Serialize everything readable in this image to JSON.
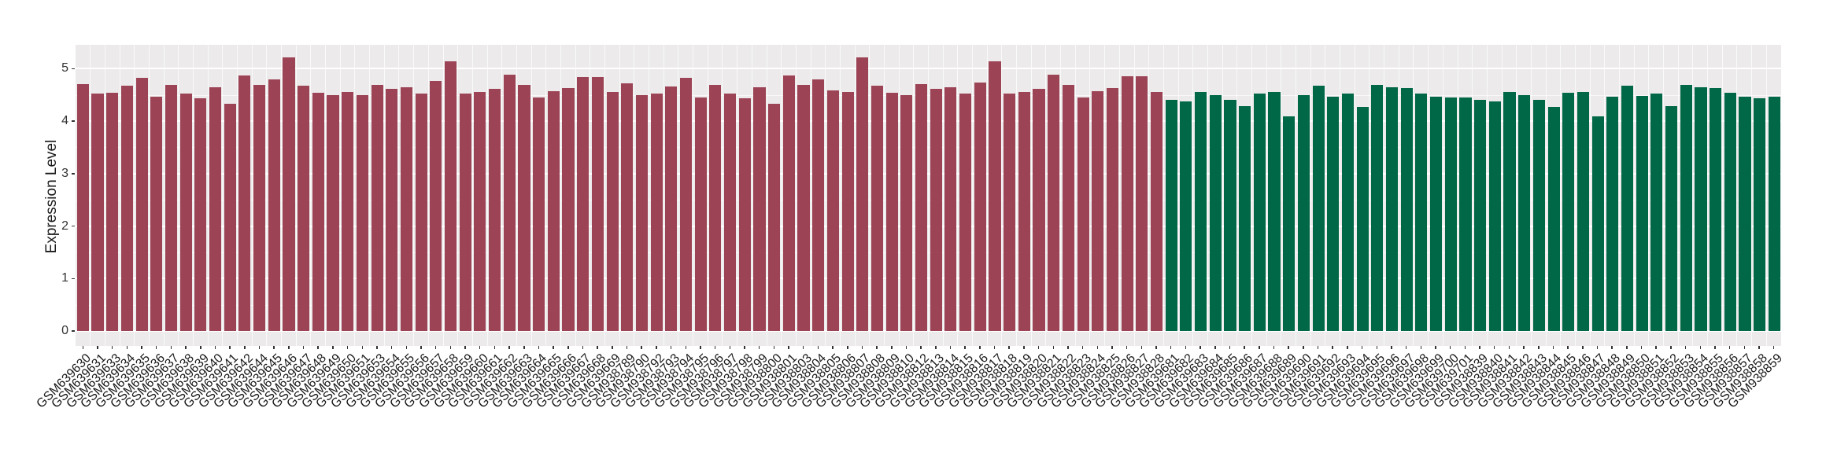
{
  "chart_data": {
    "type": "bar",
    "title": "",
    "xlabel": "",
    "ylabel": "Expression Level",
    "ylim": [
      0,
      5.46
    ],
    "yticks": [
      0,
      1,
      2,
      3,
      4,
      5
    ],
    "grid": "white major and minor horizontal lines plus vertical separators on gray panel",
    "legend_position": "none",
    "panel_background": "#ECEAEA",
    "group_colors": {
      "red": "#9C4355",
      "green": "#006747"
    },
    "bars": [
      {
        "label": "GSM639630",
        "value": 4.71,
        "group": "red"
      },
      {
        "label": "GSM639631",
        "value": 4.52,
        "group": "red"
      },
      {
        "label": "GSM639633",
        "value": 4.54,
        "group": "red"
      },
      {
        "label": "GSM639634",
        "value": 4.67,
        "group": "red"
      },
      {
        "label": "GSM639635",
        "value": 4.82,
        "group": "red"
      },
      {
        "label": "GSM639636",
        "value": 4.46,
        "group": "red"
      },
      {
        "label": "GSM639637",
        "value": 4.69,
        "group": "red"
      },
      {
        "label": "GSM639638",
        "value": 4.52,
        "group": "red"
      },
      {
        "label": "GSM639639",
        "value": 4.44,
        "group": "red"
      },
      {
        "label": "GSM639640",
        "value": 4.65,
        "group": "red"
      },
      {
        "label": "GSM639641",
        "value": 4.33,
        "group": "red"
      },
      {
        "label": "GSM639642",
        "value": 4.87,
        "group": "red"
      },
      {
        "label": "GSM639644",
        "value": 4.69,
        "group": "red"
      },
      {
        "label": "GSM639645",
        "value": 4.79,
        "group": "red"
      },
      {
        "label": "GSM639646",
        "value": 5.22,
        "group": "red"
      },
      {
        "label": "GSM639647",
        "value": 4.68,
        "group": "red"
      },
      {
        "label": "GSM639648",
        "value": 4.54,
        "group": "red"
      },
      {
        "label": "GSM639649",
        "value": 4.49,
        "group": "red"
      },
      {
        "label": "GSM639650",
        "value": 4.56,
        "group": "red"
      },
      {
        "label": "GSM639651",
        "value": 4.5,
        "group": "red"
      },
      {
        "label": "GSM639653",
        "value": 4.69,
        "group": "red"
      },
      {
        "label": "GSM639654",
        "value": 4.61,
        "group": "red"
      },
      {
        "label": "GSM639655",
        "value": 4.64,
        "group": "red"
      },
      {
        "label": "GSM639656",
        "value": 4.53,
        "group": "red"
      },
      {
        "label": "GSM639657",
        "value": 4.76,
        "group": "red"
      },
      {
        "label": "GSM639658",
        "value": 5.14,
        "group": "red"
      },
      {
        "label": "GSM639659",
        "value": 4.52,
        "group": "red"
      },
      {
        "label": "GSM639660",
        "value": 4.56,
        "group": "red"
      },
      {
        "label": "GSM639661",
        "value": 4.61,
        "group": "red"
      },
      {
        "label": "GSM639662",
        "value": 4.89,
        "group": "red"
      },
      {
        "label": "GSM639663",
        "value": 4.69,
        "group": "red"
      },
      {
        "label": "GSM639664",
        "value": 4.45,
        "group": "red"
      },
      {
        "label": "GSM639665",
        "value": 4.57,
        "group": "red"
      },
      {
        "label": "GSM639666",
        "value": 4.63,
        "group": "red"
      },
      {
        "label": "GSM639667",
        "value": 4.84,
        "group": "red"
      },
      {
        "label": "GSM639668",
        "value": 4.84,
        "group": "red"
      },
      {
        "label": "GSM639669",
        "value": 4.55,
        "group": "red"
      },
      {
        "label": "GSM938789",
        "value": 4.72,
        "group": "red"
      },
      {
        "label": "GSM938790",
        "value": 4.49,
        "group": "red"
      },
      {
        "label": "GSM938792",
        "value": 4.53,
        "group": "red"
      },
      {
        "label": "GSM938793",
        "value": 4.66,
        "group": "red"
      },
      {
        "label": "GSM938794",
        "value": 4.82,
        "group": "red"
      },
      {
        "label": "GSM938795",
        "value": 4.45,
        "group": "red"
      },
      {
        "label": "GSM938796",
        "value": 4.69,
        "group": "red"
      },
      {
        "label": "GSM938797",
        "value": 4.52,
        "group": "red"
      },
      {
        "label": "GSM938798",
        "value": 4.44,
        "group": "red"
      },
      {
        "label": "GSM938799",
        "value": 4.65,
        "group": "red"
      },
      {
        "label": "GSM938800",
        "value": 4.33,
        "group": "red"
      },
      {
        "label": "GSM938801",
        "value": 4.87,
        "group": "red"
      },
      {
        "label": "GSM938803",
        "value": 4.69,
        "group": "red"
      },
      {
        "label": "GSM938804",
        "value": 4.79,
        "group": "red"
      },
      {
        "label": "GSM938805",
        "value": 4.59,
        "group": "red"
      },
      {
        "label": "GSM938806",
        "value": 4.55,
        "group": "red"
      },
      {
        "label": "GSM938807",
        "value": 5.22,
        "group": "red"
      },
      {
        "label": "GSM938808",
        "value": 4.68,
        "group": "red"
      },
      {
        "label": "GSM938809",
        "value": 4.54,
        "group": "red"
      },
      {
        "label": "GSM938810",
        "value": 4.5,
        "group": "red"
      },
      {
        "label": "GSM938812",
        "value": 4.7,
        "group": "red"
      },
      {
        "label": "GSM938813",
        "value": 4.61,
        "group": "red"
      },
      {
        "label": "GSM938814",
        "value": 4.64,
        "group": "red"
      },
      {
        "label": "GSM938815",
        "value": 4.53,
        "group": "red"
      },
      {
        "label": "GSM938816",
        "value": 4.74,
        "group": "red"
      },
      {
        "label": "GSM938817",
        "value": 5.14,
        "group": "red"
      },
      {
        "label": "GSM938818",
        "value": 4.52,
        "group": "red"
      },
      {
        "label": "GSM938819",
        "value": 4.56,
        "group": "red"
      },
      {
        "label": "GSM938820",
        "value": 4.62,
        "group": "red"
      },
      {
        "label": "GSM938821",
        "value": 4.89,
        "group": "red"
      },
      {
        "label": "GSM938822",
        "value": 4.69,
        "group": "red"
      },
      {
        "label": "GSM938823",
        "value": 4.45,
        "group": "red"
      },
      {
        "label": "GSM938824",
        "value": 4.57,
        "group": "red"
      },
      {
        "label": "GSM938825",
        "value": 4.63,
        "group": "red"
      },
      {
        "label": "GSM938826",
        "value": 4.86,
        "group": "red"
      },
      {
        "label": "GSM938827",
        "value": 4.86,
        "group": "red"
      },
      {
        "label": "GSM938828",
        "value": 4.55,
        "group": "red"
      },
      {
        "label": "GSM639681",
        "value": 4.4,
        "group": "green"
      },
      {
        "label": "GSM639682",
        "value": 4.38,
        "group": "green"
      },
      {
        "label": "GSM639683",
        "value": 4.55,
        "group": "green"
      },
      {
        "label": "GSM639684",
        "value": 4.5,
        "group": "green"
      },
      {
        "label": "GSM639685",
        "value": 4.41,
        "group": "green"
      },
      {
        "label": "GSM639686",
        "value": 4.29,
        "group": "green"
      },
      {
        "label": "GSM639687",
        "value": 4.53,
        "group": "green"
      },
      {
        "label": "GSM639688",
        "value": 4.55,
        "group": "green"
      },
      {
        "label": "GSM639689",
        "value": 4.09,
        "group": "green"
      },
      {
        "label": "GSM639690",
        "value": 4.49,
        "group": "green"
      },
      {
        "label": "GSM639691",
        "value": 4.67,
        "group": "green"
      },
      {
        "label": "GSM639692",
        "value": 4.47,
        "group": "green"
      },
      {
        "label": "GSM639693",
        "value": 4.53,
        "group": "green"
      },
      {
        "label": "GSM639694",
        "value": 4.27,
        "group": "green"
      },
      {
        "label": "GSM639695",
        "value": 4.69,
        "group": "green"
      },
      {
        "label": "GSM639696",
        "value": 4.64,
        "group": "green"
      },
      {
        "label": "GSM639697",
        "value": 4.63,
        "group": "green"
      },
      {
        "label": "GSM639698",
        "value": 4.53,
        "group": "green"
      },
      {
        "label": "GSM639699",
        "value": 4.47,
        "group": "green"
      },
      {
        "label": "GSM639700",
        "value": 4.45,
        "group": "green"
      },
      {
        "label": "GSM639701",
        "value": 4.45,
        "group": "green"
      },
      {
        "label": "GSM938839",
        "value": 4.41,
        "group": "green"
      },
      {
        "label": "GSM938840",
        "value": 4.38,
        "group": "green"
      },
      {
        "label": "GSM938841",
        "value": 4.55,
        "group": "green"
      },
      {
        "label": "GSM938842",
        "value": 4.5,
        "group": "green"
      },
      {
        "label": "GSM938843",
        "value": 4.41,
        "group": "green"
      },
      {
        "label": "GSM938844",
        "value": 4.27,
        "group": "green"
      },
      {
        "label": "GSM938845",
        "value": 4.54,
        "group": "green"
      },
      {
        "label": "GSM938846",
        "value": 4.55,
        "group": "green"
      },
      {
        "label": "GSM938847",
        "value": 4.09,
        "group": "green"
      },
      {
        "label": "GSM938848",
        "value": 4.46,
        "group": "green"
      },
      {
        "label": "GSM938849",
        "value": 4.67,
        "group": "green"
      },
      {
        "label": "GSM938850",
        "value": 4.48,
        "group": "green"
      },
      {
        "label": "GSM938851",
        "value": 4.53,
        "group": "green"
      },
      {
        "label": "GSM938852",
        "value": 4.29,
        "group": "green"
      },
      {
        "label": "GSM938853",
        "value": 4.69,
        "group": "green"
      },
      {
        "label": "GSM938854",
        "value": 4.64,
        "group": "green"
      },
      {
        "label": "GSM938855",
        "value": 4.63,
        "group": "green"
      },
      {
        "label": "GSM938856",
        "value": 4.54,
        "group": "green"
      },
      {
        "label": "GSM938857",
        "value": 4.47,
        "group": "green"
      },
      {
        "label": "GSM938858",
        "value": 4.44,
        "group": "green"
      },
      {
        "label": "GSM938859",
        "value": 4.46,
        "group": "green"
      }
    ]
  }
}
